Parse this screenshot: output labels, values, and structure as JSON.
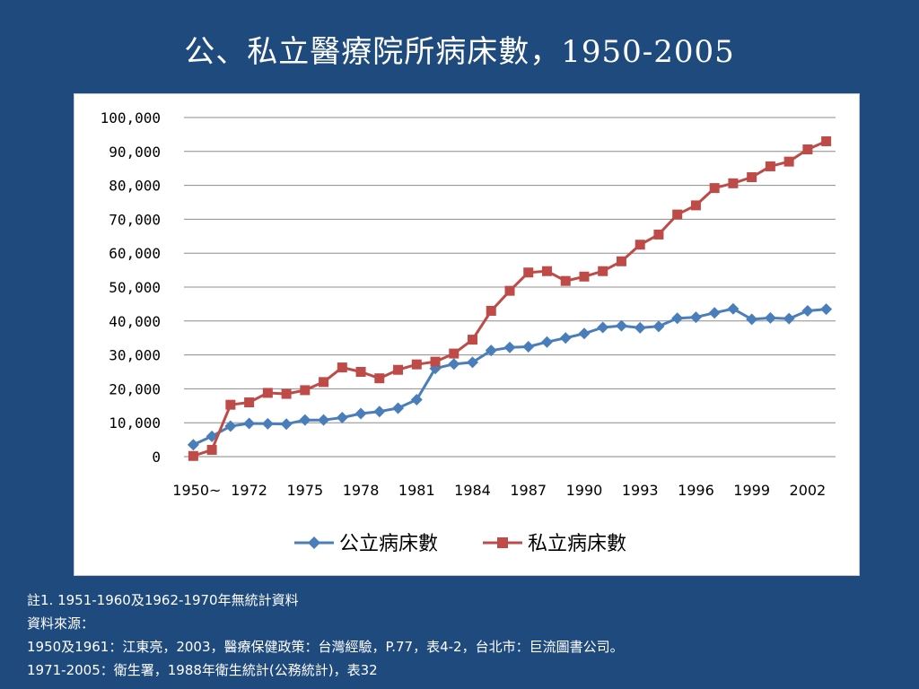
{
  "slide": {
    "title": "公、私立醫療院所病床數，1950-2005",
    "background_color": "#1f4a7d"
  },
  "notes": [
    "註1. 1951-1960及1962-1970年無統計資料",
    "資料來源：",
    "1950及1961：江東亮，2003，醫療保健政策：台灣經驗，P.77，表4-2，台北市：巨流圖書公司。",
    "1971-2005：衛生署，1988年衛生統計(公務統計)，表32"
  ],
  "chart_data": {
    "type": "line",
    "title": "",
    "xlabel": "",
    "ylabel": "",
    "ylim": [
      0,
      100000
    ],
    "y_ticks": [
      0,
      10000,
      20000,
      30000,
      40000,
      50000,
      60000,
      70000,
      80000,
      90000,
      100000
    ],
    "y_tick_labels": [
      "0",
      "10,000",
      "20,000",
      "30,000",
      "40,000",
      "50,000",
      "60,000",
      "70,000",
      "80,000",
      "90,000",
      "100,000"
    ],
    "grid": true,
    "legend_position": "bottom",
    "x": [
      "1950",
      "1961",
      "1971",
      "1972",
      "1973",
      "1974",
      "1975",
      "1976",
      "1977",
      "1978",
      "1979",
      "1980",
      "1981",
      "1982",
      "1983",
      "1984",
      "1985",
      "1986",
      "1987",
      "1988",
      "1989",
      "1990",
      "1991",
      "1992",
      "1993",
      "1994",
      "1995",
      "1996",
      "1997",
      "1998",
      "1999",
      "2000",
      "2001",
      "2002",
      "2003"
    ],
    "x_tick_labels": [
      "1950~",
      "1972",
      "1975",
      "1978",
      "1981",
      "1984",
      "1987",
      "1990",
      "1993",
      "1996",
      "1999",
      "2002"
    ],
    "x_tick_label_indices": [
      0,
      3,
      6,
      9,
      12,
      15,
      18,
      21,
      24,
      27,
      30,
      33
    ],
    "series": [
      {
        "name": "公立病床數",
        "color": "#4a7ebb",
        "marker": "diamond",
        "values": [
          3500,
          6000,
          9000,
          9800,
          9700,
          9600,
          10800,
          10800,
          11500,
          12700,
          13300,
          14300,
          16800,
          26000,
          27300,
          27800,
          31300,
          32200,
          32400,
          33800,
          35000,
          36300,
          38100,
          38600,
          38000,
          38400,
          40800,
          41100,
          42400,
          43600,
          40500,
          40900,
          40700,
          43000,
          43500
        ]
      },
      {
        "name": "私立病床數",
        "color": "#be4b48",
        "marker": "square",
        "values": [
          200,
          2000,
          15300,
          16000,
          18800,
          18500,
          19600,
          22000,
          26300,
          25000,
          23100,
          25600,
          27200,
          28000,
          30400,
          34500,
          43000,
          48900,
          54300,
          54700,
          51800,
          53100,
          54700,
          57600,
          62500,
          65500,
          71400,
          74100,
          79200,
          80600,
          82400,
          85600,
          87000,
          90600,
          93000
        ]
      }
    ]
  }
}
